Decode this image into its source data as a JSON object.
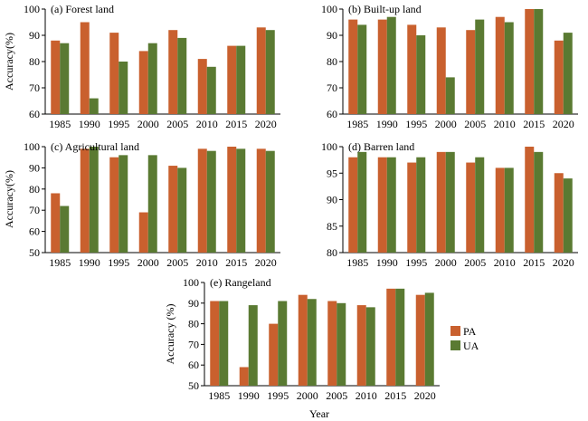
{
  "colors": {
    "PA": "#c9602e",
    "UA": "#5a7a32"
  },
  "legend": [
    {
      "key": "PA",
      "label": "PA"
    },
    {
      "key": "UA",
      "label": "UA"
    }
  ],
  "xlabel": "Year",
  "chart_data": [
    {
      "type": "bar",
      "title": "(a) Forest land",
      "ylabel": "Accuracy(%)",
      "xlabel": "",
      "categories": [
        "1985",
        "1990",
        "1995",
        "2000",
        "2005",
        "2010",
        "2015",
        "2020"
      ],
      "series": [
        {
          "name": "PA",
          "values": [
            88,
            95,
            91,
            84,
            92,
            81,
            86,
            93
          ]
        },
        {
          "name": "UA",
          "values": [
            87,
            66,
            80,
            87,
            89,
            78,
            86,
            92
          ]
        }
      ],
      "ylim": [
        60,
        100
      ],
      "yticks": [
        60,
        70,
        80,
        90,
        100
      ],
      "grid": false
    },
    {
      "type": "bar",
      "title": "(b) Built-up land",
      "ylabel": "",
      "xlabel": "",
      "categories": [
        "1985",
        "1990",
        "1995",
        "2000",
        "2005",
        "2010",
        "2015",
        "2020"
      ],
      "series": [
        {
          "name": "PA",
          "values": [
            96,
            96,
            94,
            93,
            92,
            97,
            100,
            88
          ]
        },
        {
          "name": "UA",
          "values": [
            94,
            97,
            90,
            74,
            96,
            95,
            100,
            91
          ]
        }
      ],
      "ylim": [
        60,
        100
      ],
      "yticks": [
        60,
        70,
        80,
        90,
        100
      ],
      "grid": false
    },
    {
      "type": "bar",
      "title": "(c) Agricultural land",
      "ylabel": "Accuracy(%)",
      "xlabel": "",
      "categories": [
        "1985",
        "1990",
        "1995",
        "2000",
        "2005",
        "2010",
        "2015",
        "2020"
      ],
      "series": [
        {
          "name": "PA",
          "values": [
            78,
            99,
            95,
            69,
            91,
            99,
            100,
            99
          ]
        },
        {
          "name": "UA",
          "values": [
            72,
            100,
            96,
            96,
            90,
            98,
            99,
            98
          ]
        }
      ],
      "ylim": [
        50,
        100
      ],
      "yticks": [
        50,
        60,
        70,
        80,
        90,
        100
      ],
      "grid": false
    },
    {
      "type": "bar",
      "title": "(d) Barren land",
      "ylabel": "",
      "xlabel": "",
      "categories": [
        "1985",
        "1990",
        "1995",
        "2000",
        "2005",
        "2010",
        "2015",
        "2020"
      ],
      "series": [
        {
          "name": "PA",
          "values": [
            98,
            98,
            97,
            99,
            97,
            96,
            100,
            95
          ]
        },
        {
          "name": "UA",
          "values": [
            99,
            98,
            98,
            99,
            98,
            96,
            99,
            94
          ]
        }
      ],
      "ylim": [
        80,
        100
      ],
      "yticks": [
        80,
        85,
        90,
        95,
        100
      ],
      "grid": false
    },
    {
      "type": "bar",
      "title": "(e) Rangeland",
      "ylabel": "Accuracy (%)",
      "xlabel": "Year",
      "categories": [
        "1985",
        "1990",
        "1995",
        "2000",
        "2005",
        "2010",
        "2015",
        "2020"
      ],
      "series": [
        {
          "name": "PA",
          "values": [
            91,
            59,
            80,
            94,
            91,
            89,
            97,
            94
          ]
        },
        {
          "name": "UA",
          "values": [
            91,
            89,
            91,
            92,
            90,
            88,
            97,
            95
          ]
        }
      ],
      "ylim": [
        50,
        100
      ],
      "yticks": [
        50,
        60,
        70,
        80,
        90,
        100
      ],
      "grid": false,
      "legend": "right"
    }
  ]
}
